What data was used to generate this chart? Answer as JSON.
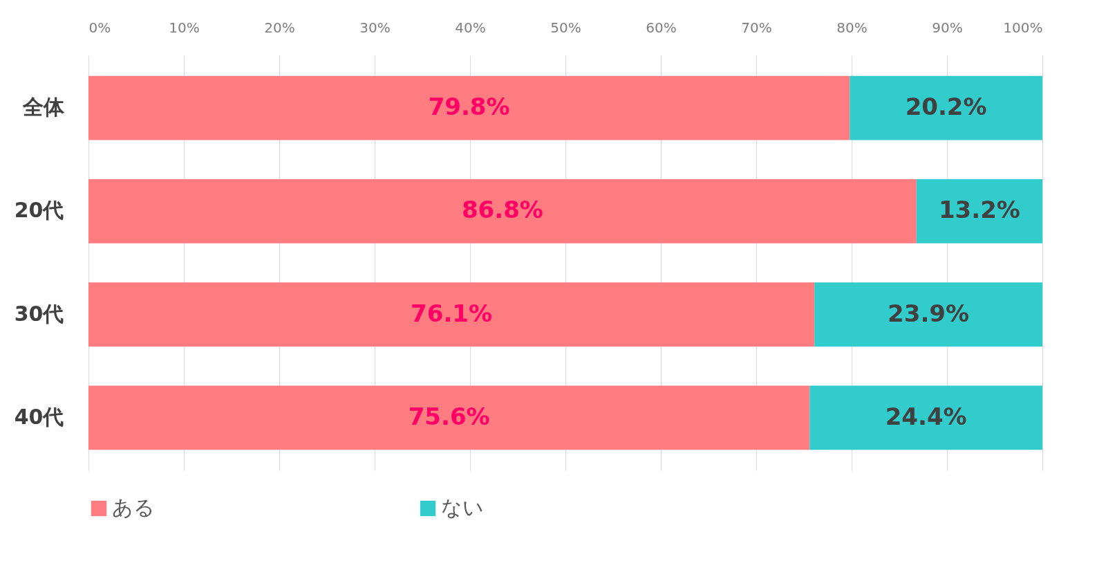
{
  "chart_data": {
    "type": "bar",
    "orientation": "horizontal",
    "stacked": true,
    "categories": [
      "全体",
      "20代",
      "30代",
      "40代"
    ],
    "series": [
      {
        "name": "ある",
        "color": "#ff7c80",
        "values": [
          79.8,
          86.8,
          76.1,
          75.6
        ],
        "value_labels": [
          "79.8%",
          "86.8%",
          "76.1%",
          "75.6%"
        ]
      },
      {
        "name": "ない",
        "color": "#33cccc",
        "values": [
          20.2,
          13.2,
          23.9,
          24.4
        ],
        "value_labels": [
          "20.2%",
          "13.2%",
          "23.9%",
          "24.4%"
        ]
      }
    ],
    "xlim": [
      0,
      100
    ],
    "xticks": [
      {
        "value": 0,
        "label": "0%"
      },
      {
        "value": 10,
        "label": "10%"
      },
      {
        "value": 20,
        "label": "20%"
      },
      {
        "value": 30,
        "label": "30%"
      },
      {
        "value": 40,
        "label": "40%"
      },
      {
        "value": 50,
        "label": "50%"
      },
      {
        "value": 60,
        "label": "60%"
      },
      {
        "value": 70,
        "label": "70%"
      },
      {
        "value": 80,
        "label": "80%"
      },
      {
        "value": 90,
        "label": "90%"
      },
      {
        "value": 100,
        "label": "100%"
      }
    ],
    "grid": "x",
    "legend": "bottom"
  }
}
